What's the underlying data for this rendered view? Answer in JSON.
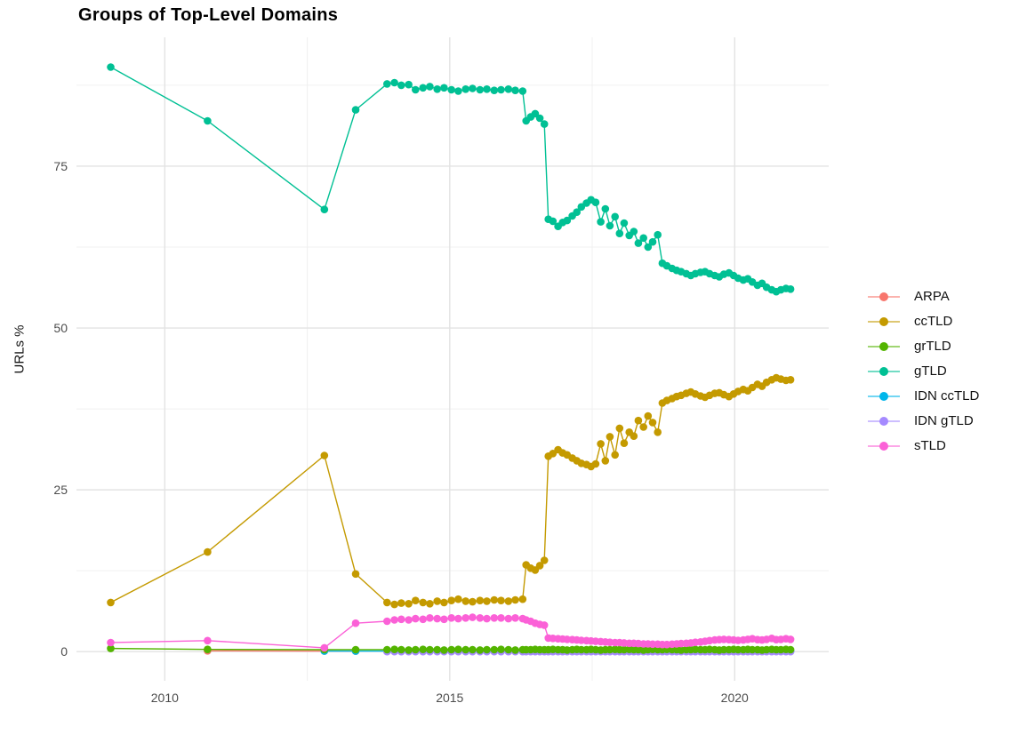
{
  "chart_data": {
    "type": "line",
    "title": "Groups of Top-Level Domains",
    "xlabel": "",
    "ylabel": "URLs %",
    "grid": true,
    "legend_position": "right",
    "x_domain": [
      2008.45,
      2021.65
    ],
    "y_domain": [
      -4.5,
      94.9
    ],
    "x_ticks": {
      "major": [
        2010,
        2015,
        2020
      ],
      "minor": [
        2012.5,
        2017.5
      ],
      "labels": [
        "2010",
        "2015",
        "2020"
      ]
    },
    "y_ticks": {
      "major": [
        0,
        25,
        50,
        75
      ],
      "minor": [
        12.5,
        37.5,
        62.5,
        87.5
      ],
      "labels": [
        "0",
        "25",
        "50",
        "75"
      ]
    },
    "x_main": [
      2009.05,
      2010.75,
      2012.8,
      2013.35,
      2013.9,
      2014.03,
      2014.15,
      2014.28,
      2014.4,
      2014.53,
      2014.65,
      2014.78,
      2014.9,
      2015.03,
      2015.15,
      2015.28,
      2015.4,
      2015.53,
      2015.65,
      2015.78,
      2015.9,
      2016.03,
      2016.15,
      2016.28,
      2016.34,
      2016.42,
      2016.5,
      2016.58,
      2016.66,
      2016.73,
      2016.81,
      2016.9,
      2016.98,
      2017.06,
      2017.15,
      2017.23,
      2017.31,
      2017.4,
      2017.48,
      2017.56,
      2017.65,
      2017.73,
      2017.81,
      2017.9,
      2017.98,
      2018.06,
      2018.15,
      2018.23,
      2018.31,
      2018.4,
      2018.48,
      2018.56,
      2018.65,
      2018.73,
      2018.81,
      2018.9,
      2018.98,
      2019.06,
      2019.15,
      2019.23,
      2019.31,
      2019.4,
      2019.48,
      2019.56,
      2019.65,
      2019.73,
      2019.81,
      2019.9,
      2019.98,
      2020.06,
      2020.15,
      2020.23,
      2020.31,
      2020.4,
      2020.48,
      2020.56,
      2020.65,
      2020.73,
      2020.81,
      2020.9,
      2020.98
    ],
    "series": [
      {
        "name": "ARPA",
        "color": "#F8766D",
        "x": [
          2010.75,
          2012.8,
          2013.35
        ],
        "y": [
          0.12,
          0.1,
          0.08
        ]
      },
      {
        "name": "ccTLD",
        "color": "#C49A00",
        "x_ref": "x_main",
        "y": [
          7.6,
          15.4,
          30.3,
          12.0,
          7.6,
          7.3,
          7.5,
          7.4,
          7.9,
          7.6,
          7.4,
          7.8,
          7.6,
          7.9,
          8.1,
          7.8,
          7.7,
          7.9,
          7.8,
          8.0,
          7.9,
          7.8,
          8.0,
          8.1,
          13.4,
          12.9,
          12.6,
          13.3,
          14.1,
          30.2,
          30.6,
          31.2,
          30.7,
          30.4,
          29.9,
          29.5,
          29.1,
          28.9,
          28.6,
          29.0,
          32.1,
          29.5,
          33.2,
          30.4,
          34.5,
          32.2,
          33.9,
          33.3,
          35.7,
          34.7,
          36.4,
          35.4,
          33.9,
          38.4,
          38.8,
          39.1,
          39.4,
          39.6,
          39.9,
          40.1,
          39.8,
          39.5,
          39.3,
          39.6,
          39.9,
          40.0,
          39.7,
          39.4,
          39.8,
          40.2,
          40.5,
          40.3,
          40.8,
          41.3,
          41.0,
          41.6,
          42.0,
          42.3,
          42.1,
          41.9,
          42.0
        ]
      },
      {
        "name": "grTLD",
        "color": "#53B400",
        "x_ref": "x_main",
        "y": [
          0.5,
          0.35,
          0.3,
          0.3,
          0.3,
          0.35,
          0.3,
          0.25,
          0.3,
          0.35,
          0.3,
          0.3,
          0.25,
          0.3,
          0.35,
          0.3,
          0.3,
          0.25,
          0.3,
          0.3,
          0.35,
          0.3,
          0.25,
          0.3,
          0.3,
          0.3,
          0.35,
          0.3,
          0.3,
          0.3,
          0.35,
          0.3,
          0.3,
          0.25,
          0.3,
          0.35,
          0.3,
          0.3,
          0.35,
          0.3,
          0.25,
          0.3,
          0.3,
          0.35,
          0.3,
          0.3,
          0.35,
          0.3,
          0.3,
          0.25,
          0.3,
          0.35,
          0.3,
          0.3,
          0.35,
          0.3,
          0.3,
          0.25,
          0.3,
          0.3,
          0.35,
          0.3,
          0.3,
          0.35,
          0.3,
          0.25,
          0.3,
          0.3,
          0.35,
          0.3,
          0.3,
          0.35,
          0.3,
          0.3,
          0.25,
          0.3,
          0.35,
          0.3,
          0.3,
          0.35,
          0.3
        ]
      },
      {
        "name": "gTLD",
        "color": "#00C094",
        "x_ref": "x_main",
        "y": [
          90.3,
          82.0,
          68.3,
          83.7,
          87.7,
          87.9,
          87.5,
          87.6,
          86.8,
          87.1,
          87.3,
          86.9,
          87.1,
          86.8,
          86.6,
          86.9,
          87.0,
          86.8,
          86.9,
          86.7,
          86.8,
          86.9,
          86.7,
          86.6,
          82.0,
          82.6,
          83.1,
          82.4,
          81.5,
          66.8,
          66.5,
          65.7,
          66.3,
          66.6,
          67.3,
          67.9,
          68.7,
          69.3,
          69.8,
          69.4,
          66.4,
          68.4,
          65.8,
          67.2,
          64.6,
          66.2,
          64.3,
          64.9,
          63.1,
          63.9,
          62.5,
          63.3,
          64.4,
          60.0,
          59.6,
          59.2,
          58.9,
          58.7,
          58.4,
          58.1,
          58.4,
          58.6,
          58.7,
          58.4,
          58.1,
          57.9,
          58.3,
          58.5,
          58.1,
          57.7,
          57.4,
          57.6,
          57.1,
          56.6,
          56.9,
          56.3,
          55.9,
          55.6,
          55.9,
          56.1,
          56.0
        ]
      },
      {
        "name": "IDN ccTLD",
        "color": "#00B6EB",
        "x_ref": "x_main",
        "x_start_index": 2,
        "y_const": 0.08
      },
      {
        "name": "IDN gTLD",
        "color": "#A58AFF",
        "x_ref": "x_main",
        "x_start_index": 4,
        "y_const": 0.0
      },
      {
        "name": "sTLD",
        "color": "#FB61D7",
        "x_ref": "x_main",
        "y": [
          1.4,
          1.7,
          0.6,
          4.4,
          4.7,
          4.9,
          5.0,
          4.9,
          5.1,
          5.0,
          5.2,
          5.1,
          5.0,
          5.2,
          5.1,
          5.2,
          5.3,
          5.2,
          5.1,
          5.2,
          5.2,
          5.1,
          5.2,
          5.1,
          4.9,
          4.7,
          4.4,
          4.2,
          4.1,
          2.1,
          2.05,
          2.0,
          1.95,
          1.9,
          1.85,
          1.8,
          1.75,
          1.7,
          1.65,
          1.6,
          1.55,
          1.5,
          1.45,
          1.4,
          1.4,
          1.35,
          1.3,
          1.3,
          1.25,
          1.2,
          1.2,
          1.15,
          1.15,
          1.1,
          1.1,
          1.15,
          1.2,
          1.25,
          1.3,
          1.35,
          1.45,
          1.5,
          1.6,
          1.7,
          1.8,
          1.85,
          1.9,
          1.85,
          1.8,
          1.75,
          1.8,
          1.9,
          2.0,
          1.85,
          1.8,
          1.9,
          2.05,
          1.85,
          1.9,
          2.0,
          1.9
        ]
      }
    ],
    "style": {
      "grid_major_color": "#e3e3e3",
      "grid_minor_color": "#f0f0f0",
      "tick_label_color": "#4d4d4d",
      "text_color": "#111111",
      "background": "#ffffff"
    }
  }
}
